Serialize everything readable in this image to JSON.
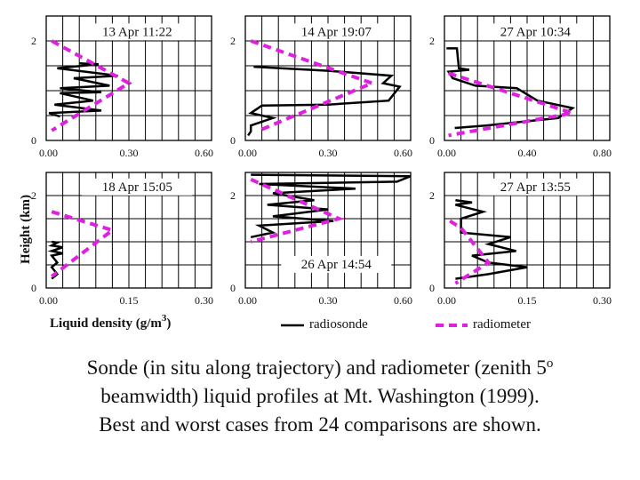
{
  "figure": {
    "ylabel": "Height  (km)",
    "xlabel_main": "Liquid  density  (g/m",
    "xlabel_exp": "3",
    "xlabel_close": ")",
    "legend": [
      {
        "name": "radiosonde",
        "style": "solid",
        "color": "#000000"
      },
      {
        "name": "radiometer",
        "style": "dashed",
        "color": "#e020e0"
      }
    ]
  },
  "caption": {
    "line1": "Sonde (in situ along trajectory) and radiometer (zenith 5",
    "line1_sup": "o",
    "line2": "beamwidth) liquid profiles at Mt. Washington (1999).",
    "line3": "Best and worst cases from 24 comparisons are shown."
  },
  "chart_data": [
    {
      "type": "line",
      "title": "13 Apr 11:22",
      "xlim": [
        0,
        0.6
      ],
      "ylim": [
        0,
        2.5
      ],
      "xticks": [
        "0.00",
        "0.30",
        "0.60"
      ],
      "yticks": [
        "0",
        "2"
      ],
      "series": [
        {
          "name": "radiosonde",
          "points": [
            [
              0.12,
              1.55
            ],
            [
              0.19,
              1.53
            ],
            [
              0.04,
              1.45
            ],
            [
              0.26,
              1.3
            ],
            [
              0.1,
              1.25
            ],
            [
              0.23,
              1.1
            ],
            [
              0.05,
              1.05
            ],
            [
              0.2,
              0.97
            ],
            [
              0.05,
              0.95
            ],
            [
              0.17,
              0.8
            ],
            [
              0.03,
              0.72
            ],
            [
              0.2,
              0.6
            ],
            [
              0.01,
              0.55
            ],
            [
              0.05,
              0.48
            ]
          ]
        },
        {
          "name": "radiometer",
          "points": [
            [
              0.02,
              2.0
            ],
            [
              0.3,
              1.15
            ],
            [
              0.02,
              0.2
            ]
          ]
        }
      ]
    },
    {
      "type": "line",
      "title": "14 Apr 19:07",
      "xlim": [
        0,
        0.6
      ],
      "ylim": [
        0,
        2.5
      ],
      "xticks": [
        "0.00",
        "0.30",
        "0.60"
      ],
      "yticks": [
        "0",
        "2"
      ],
      "series": [
        {
          "name": "radiosonde",
          "points": [
            [
              0.03,
              1.48
            ],
            [
              0.3,
              1.4
            ],
            [
              0.53,
              1.3
            ],
            [
              0.5,
              1.15
            ],
            [
              0.56,
              1.08
            ],
            [
              0.52,
              0.8
            ],
            [
              0.3,
              0.72
            ],
            [
              0.06,
              0.7
            ],
            [
              0.02,
              0.55
            ],
            [
              0.1,
              0.45
            ],
            [
              0.02,
              0.3
            ],
            [
              0.02,
              0.18
            ],
            [
              0.01,
              0.1
            ]
          ]
        },
        {
          "name": "radiometer",
          "points": [
            [
              0.02,
              2.0
            ],
            [
              0.46,
              1.15
            ],
            [
              0.05,
              0.2
            ]
          ]
        }
      ]
    },
    {
      "type": "line",
      "title": "27 Apr 10:34",
      "xlim": [
        0,
        0.8
      ],
      "ylim": [
        0,
        2.5
      ],
      "xticks": [
        "0.00",
        "0.40",
        "0.80"
      ],
      "yticks": [
        "0",
        "2"
      ],
      "series": [
        {
          "name": "radiosonde",
          "points": [
            [
              0.01,
              1.85
            ],
            [
              0.06,
              1.85
            ],
            [
              0.07,
              1.45
            ],
            [
              0.12,
              1.42
            ],
            [
              0.02,
              1.38
            ],
            [
              0.04,
              1.25
            ],
            [
              0.15,
              1.1
            ],
            [
              0.35,
              1.05
            ],
            [
              0.45,
              0.8
            ],
            [
              0.62,
              0.65
            ],
            [
              0.55,
              0.45
            ],
            [
              0.2,
              0.3
            ],
            [
              0.05,
              0.25
            ]
          ]
        },
        {
          "name": "radiometer",
          "points": [
            [
              0.02,
              1.35
            ],
            [
              0.62,
              0.55
            ],
            [
              0.02,
              0.1
            ]
          ]
        }
      ]
    },
    {
      "type": "line",
      "title": "18 Apr 15:05",
      "xlim": [
        0,
        0.3
      ],
      "ylim": [
        0,
        2.5
      ],
      "xticks": [
        "0.00",
        "0.15",
        "0.30"
      ],
      "yticks": [
        "0",
        "2"
      ],
      "series": [
        {
          "name": "radiosonde",
          "points": [
            [
              0.01,
              1.0
            ],
            [
              0.02,
              0.98
            ],
            [
              0.01,
              0.92
            ],
            [
              0.03,
              0.88
            ],
            [
              0.01,
              0.8
            ],
            [
              0.03,
              0.75
            ],
            [
              0.01,
              0.7
            ],
            [
              0.02,
              0.55
            ],
            [
              0.01,
              0.45
            ],
            [
              0.02,
              0.3
            ],
            [
              0.01,
              0.2
            ]
          ]
        },
        {
          "name": "radiometer",
          "points": [
            [
              0.01,
              1.65
            ],
            [
              0.12,
              1.25
            ],
            [
              0.01,
              0.25
            ]
          ]
        }
      ]
    },
    {
      "type": "line",
      "title": "26 Apr 14:54",
      "xlim": [
        0,
        0.6
      ],
      "ylim": [
        0,
        2.5
      ],
      "xticks": [
        "0.00",
        "0.30",
        "0.60"
      ],
      "yticks": [
        "0",
        "2"
      ],
      "series": [
        {
          "name": "radiosonde",
          "points": [
            [
              0.02,
              2.45
            ],
            [
              0.6,
              2.42
            ],
            [
              0.55,
              2.3
            ],
            [
              0.05,
              2.25
            ],
            [
              0.4,
              2.15
            ],
            [
              0.1,
              2.05
            ],
            [
              0.25,
              1.9
            ],
            [
              0.08,
              1.8
            ],
            [
              0.3,
              1.7
            ],
            [
              0.1,
              1.55
            ],
            [
              0.32,
              1.45
            ],
            [
              0.05,
              1.35
            ],
            [
              0.1,
              1.2
            ],
            [
              0.02,
              1.1
            ]
          ]
        },
        {
          "name": "radiometer",
          "points": [
            [
              0.02,
              2.35
            ],
            [
              0.34,
              1.5
            ],
            [
              0.02,
              1.0
            ]
          ]
        }
      ]
    },
    {
      "type": "line",
      "title": "27 Apr 13:55",
      "xlim": [
        0,
        0.3
      ],
      "ylim": [
        0,
        2.5
      ],
      "xticks": [
        "0.00",
        "0.15",
        "0.30"
      ],
      "yticks": [
        "0",
        "2"
      ],
      "series": [
        {
          "name": "radiosonde",
          "points": [
            [
              0.02,
              1.9
            ],
            [
              0.05,
              1.85
            ],
            [
              0.02,
              1.8
            ],
            [
              0.07,
              1.65
            ],
            [
              0.03,
              1.5
            ],
            [
              0.03,
              1.2
            ],
            [
              0.12,
              1.1
            ],
            [
              0.08,
              0.95
            ],
            [
              0.13,
              0.8
            ],
            [
              0.05,
              0.7
            ],
            [
              0.08,
              0.55
            ],
            [
              0.15,
              0.45
            ],
            [
              0.08,
              0.3
            ],
            [
              0.02,
              0.2
            ]
          ]
        },
        {
          "name": "radiometer",
          "points": [
            [
              0.01,
              1.45
            ],
            [
              0.03,
              1.3
            ],
            [
              0.08,
              0.55
            ],
            [
              0.02,
              0.1
            ]
          ]
        }
      ]
    }
  ]
}
